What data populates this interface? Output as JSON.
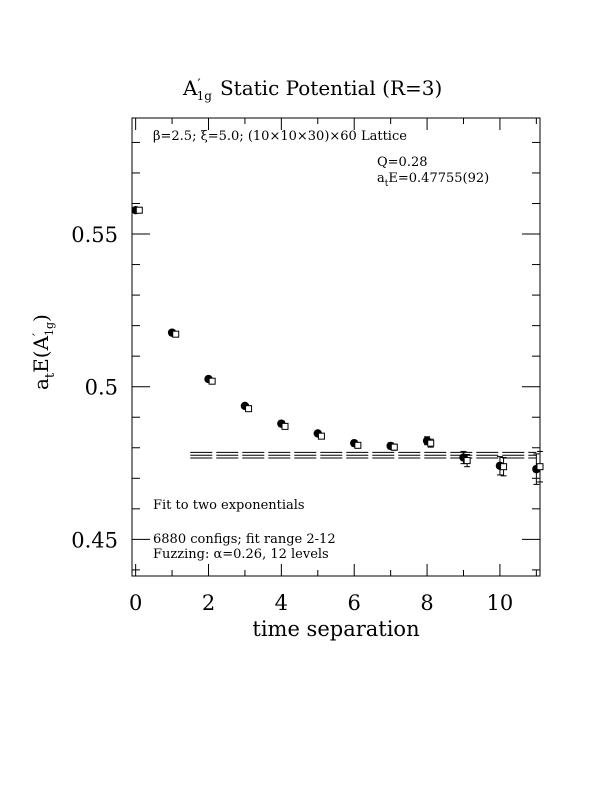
{
  "chart_data": {
    "type": "scatter",
    "title_main": "A",
    "title_prime": "′",
    "title_sub": "1g",
    "title_rest": "Static Potential (R=3)",
    "xlabel": "time separation",
    "ylabel_a": "a",
    "ylabel_t": "t",
    "ylabel_E": "E(A",
    "ylabel_prime": "′",
    "ylabel_sub": "1g",
    "ylabel_close": ")",
    "xlim": [
      -0.1,
      11.1
    ],
    "ylim": [
      0.438,
      0.588
    ],
    "xticks": [
      0,
      2,
      4,
      6,
      8,
      10
    ],
    "xtick_labels": [
      "0",
      "2",
      "4",
      "6",
      "8",
      "10"
    ],
    "yticks": [
      0.45,
      0.5,
      0.55
    ],
    "ytick_labels": [
      "0.45",
      "0.5",
      "0.55"
    ],
    "annotations": {
      "lattice": "β=2.5; ξ=5.0; (10×10×30)×60 Lattice",
      "q_value": "Q=0.28",
      "energy_prefix": "a",
      "energy_sub": "t",
      "energy_value": "E=0.47755(92)",
      "fit_label": "Fit to two exponentials",
      "configs": "6880 configs; fit range 2-12",
      "fuzzing": "Fuzzing: α=0.26, 12 levels"
    },
    "series": [
      {
        "name": "effective mass (filled circles)",
        "marker": "circle-filled",
        "x": [
          0,
          1,
          2,
          3,
          4,
          5,
          6,
          7,
          8,
          9,
          10,
          11
        ],
        "y": [
          0.5578,
          0.5177,
          0.5025,
          0.4937,
          0.4879,
          0.4847,
          0.4815,
          0.4806,
          0.4823,
          0.4768,
          0.4741,
          0.473
        ],
        "err": [
          0.0004,
          0.0004,
          0.0005,
          0.0006,
          0.0007,
          0.0008,
          0.0009,
          0.001,
          0.0013,
          0.002,
          0.003,
          0.005
        ]
      },
      {
        "name": "fit prediction (open squares)",
        "marker": "square-open",
        "x": [
          0.1,
          1.1,
          2.1,
          3.1,
          4.1,
          5.1,
          6.1,
          7.1,
          8.1,
          9.1,
          10.1,
          11.1
        ],
        "y": [
          0.5578,
          0.5172,
          0.5018,
          0.4928,
          0.487,
          0.4838,
          0.4808,
          0.4802,
          0.4815,
          0.4758,
          0.4738,
          0.4738
        ],
        "err": [
          0.0004,
          0.0004,
          0.0005,
          0.0006,
          0.0007,
          0.0008,
          0.0009,
          0.001,
          0.0013,
          0.002,
          0.003,
          0.005
        ]
      }
    ],
    "fit_band": {
      "x_start": 1.5,
      "x_end": 11.0,
      "center": 0.47755,
      "error": 0.00092
    }
  }
}
